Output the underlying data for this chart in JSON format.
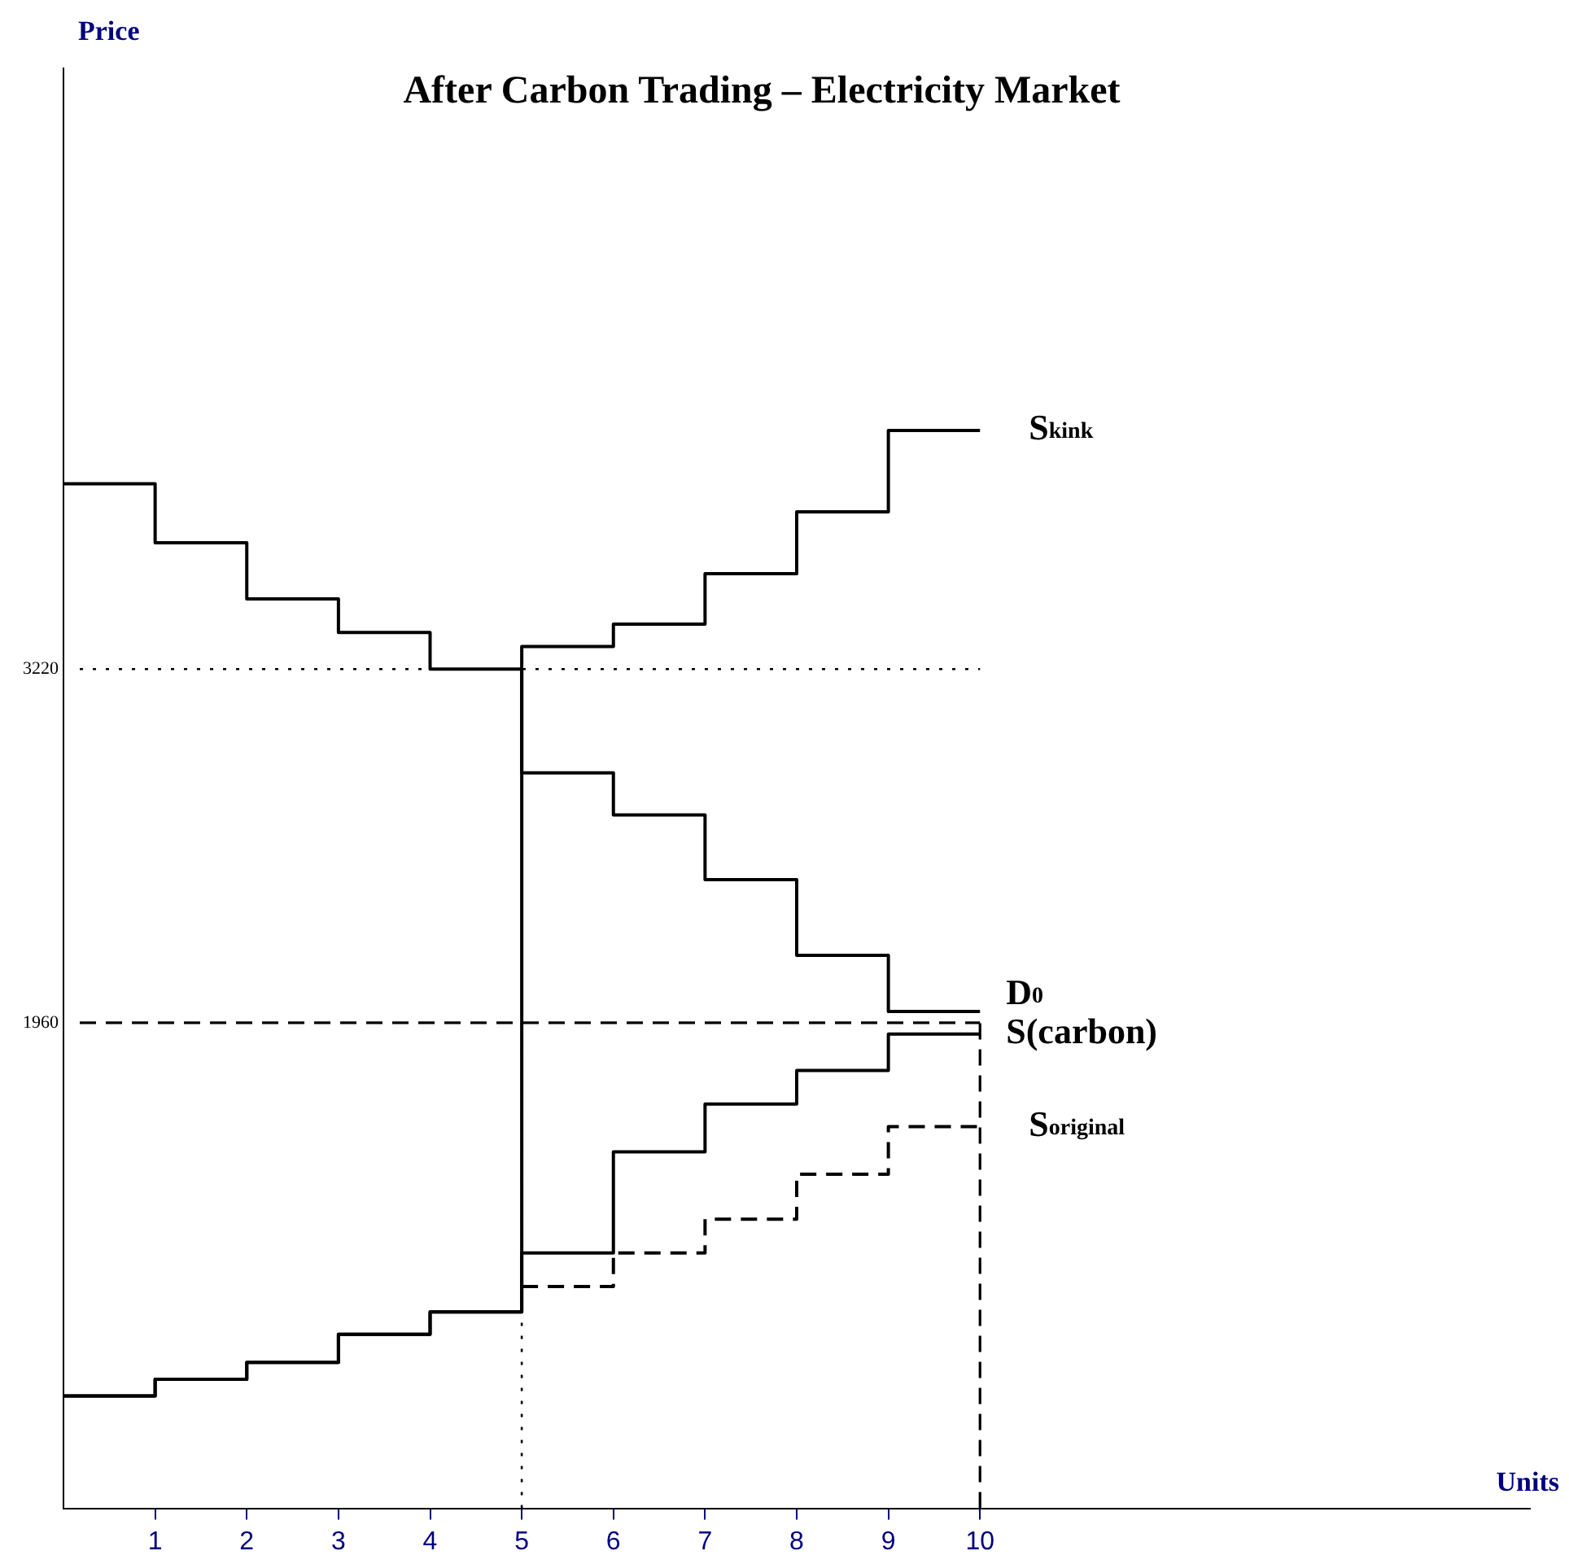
{
  "chart_data": {
    "type": "step",
    "title": "After Carbon Trading – Electricity Market",
    "xlabel": "Units",
    "ylabel": "Price",
    "x": [
      0,
      1,
      2,
      3,
      4,
      5,
      6,
      7,
      8,
      9,
      10
    ],
    "series": [
      {
        "name": "S$_{kink}$",
        "color": "#000000",
        "values": [
          630,
          690,
          750,
          850,
          930,
          3300,
          3380,
          3560,
          3780,
          4070,
          4070
        ]
      },
      {
        "name": "D$_{0}$",
        "color": "#000000",
        "values": [
          3880,
          3670,
          3470,
          3350,
          3220,
          2850,
          2700,
          2470,
          2200,
          2000,
          2000
        ]
      },
      {
        "name": "S(carbon)",
        "color": "#000000",
        "values": [
          630,
          690,
          750,
          850,
          930,
          1140,
          1500,
          1670,
          1790,
          1920,
          1920
        ]
      },
      {
        "name": "S$_{original}$",
        "color": "#000000",
        "line_style": "dashed",
        "x": [
          5,
          6,
          7,
          8,
          9,
          10
        ],
        "values": [
          1020,
          1140,
          1260,
          1420,
          1590,
          1590
        ]
      }
    ],
    "xlim": [
      0,
      16
    ],
    "xticks": [
      1,
      2,
      3,
      4,
      5,
      6,
      7,
      8,
      9,
      10
    ],
    "ylim": [
      230,
      5360
    ],
    "yticks": [
      1960,
      3220
    ],
    "grid": false,
    "legend": false,
    "marker": "none",
    "line_style": "solid",
    "ref_lines": [
      {
        "axis": "y",
        "value": 3220,
        "label": null,
        "line_style": "dotted",
        "color": "#000000"
      },
      {
        "axis": "y",
        "value": 1960,
        "label": null,
        "line_style": "dashed",
        "color": "#000000"
      },
      {
        "axis": "x",
        "value": 5,
        "label": null,
        "line_style": "dotted",
        "color": "#000000"
      },
      {
        "axis": "x",
        "value": 10,
        "label": null,
        "line_style": "dashed",
        "color": "#000000"
      }
    ]
  }
}
